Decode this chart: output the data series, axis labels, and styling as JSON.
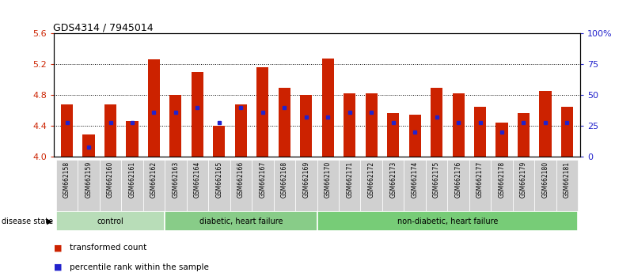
{
  "title": "GDS4314 / 7945014",
  "samples": [
    "GSM662158",
    "GSM662159",
    "GSM662160",
    "GSM662161",
    "GSM662162",
    "GSM662163",
    "GSM662164",
    "GSM662165",
    "GSM662166",
    "GSM662167",
    "GSM662168",
    "GSM662169",
    "GSM662170",
    "GSM662171",
    "GSM662172",
    "GSM662173",
    "GSM662174",
    "GSM662175",
    "GSM662176",
    "GSM662177",
    "GSM662178",
    "GSM662179",
    "GSM662180",
    "GSM662181"
  ],
  "bar_values": [
    4.68,
    4.29,
    4.68,
    4.46,
    5.27,
    4.8,
    5.1,
    4.4,
    4.68,
    5.16,
    4.9,
    4.8,
    5.28,
    4.82,
    4.82,
    4.57,
    4.55,
    4.9,
    4.82,
    4.65,
    4.44,
    4.57,
    4.86,
    4.65
  ],
  "percentile_values": [
    28,
    8,
    28,
    28,
    36,
    36,
    40,
    28,
    40,
    36,
    40,
    32,
    32,
    36,
    36,
    28,
    20,
    32,
    28,
    28,
    20,
    28,
    28,
    28
  ],
  "ylim_left": [
    4.0,
    5.6
  ],
  "ylim_right": [
    0,
    100
  ],
  "yticks_left": [
    4.0,
    4.4,
    4.8,
    5.2,
    5.6
  ],
  "yticks_right": [
    0,
    25,
    50,
    75,
    100
  ],
  "ytick_labels_right": [
    "0",
    "25",
    "50",
    "75",
    "100%"
  ],
  "bar_color": "#cc2200",
  "percentile_color": "#2222cc",
  "groups": [
    {
      "label": "control",
      "start": 0,
      "end": 5
    },
    {
      "label": "diabetic, heart failure",
      "start": 5,
      "end": 12
    },
    {
      "label": "non-diabetic, heart failure",
      "start": 12,
      "end": 24
    }
  ],
  "group_colors": [
    "#b8ddb8",
    "#88cc88",
    "#77cc77"
  ],
  "disease_state_label": "disease state",
  "legend_items": [
    {
      "label": "transformed count",
      "color": "#cc2200"
    },
    {
      "label": "percentile rank within the sample",
      "color": "#2222cc"
    }
  ],
  "background_color": "#ffffff",
  "tick_label_color_left": "#cc2200",
  "tick_label_color_right": "#2222cc",
  "sample_box_color": "#d0d0d0"
}
